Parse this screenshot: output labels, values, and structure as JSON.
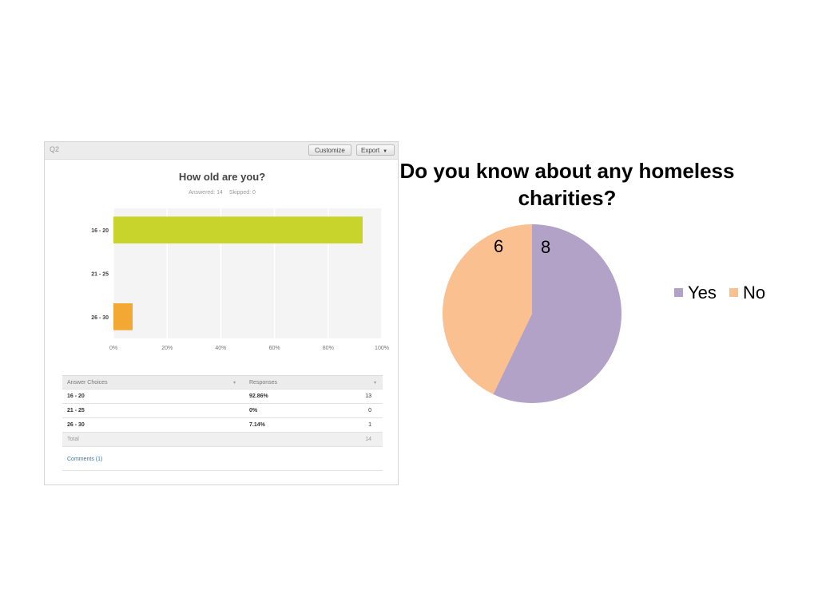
{
  "survey_panel": {
    "question_label": "Q2",
    "customize_label": "Customize",
    "export_label": "Export",
    "title": "How old are you?",
    "answered": "Answered: 14",
    "skipped": "Skipped: 0",
    "comments_link": "Comments (1)"
  },
  "response_table": {
    "headers": [
      "Answer Choices",
      "Responses"
    ],
    "rows": [
      {
        "choice": "16 - 20",
        "percent": "92.86%",
        "count": "13"
      },
      {
        "choice": "21 - 25",
        "percent": "0%",
        "count": "0"
      },
      {
        "choice": "26 - 30",
        "percent": "7.14%",
        "count": "1"
      }
    ],
    "total_label": "Total",
    "total_count": "14"
  },
  "pie_legend": {
    "yes_label": "Yes",
    "no_label": "No"
  },
  "pie_values": {
    "yes": "8",
    "no": "6"
  },
  "chart_data": [
    {
      "type": "bar",
      "orientation": "horizontal",
      "title": "How old are you?",
      "categories": [
        "16 - 20",
        "21 - 25",
        "26 - 30"
      ],
      "values": [
        92.86,
        0,
        7.14
      ],
      "colors": [
        "#c8d32c",
        "#c8d32c",
        "#f3a833"
      ],
      "xlim": [
        0,
        100
      ],
      "xticks": [
        "0%",
        "20%",
        "40%",
        "60%",
        "80%",
        "100%"
      ],
      "grid": true
    },
    {
      "type": "pie",
      "title": "Do you know about any homeless charities?",
      "labels": [
        "Yes",
        "No"
      ],
      "values": [
        8,
        6
      ],
      "colors": [
        "#b2a2c7",
        "#fac090"
      ],
      "legend": "right"
    }
  ]
}
